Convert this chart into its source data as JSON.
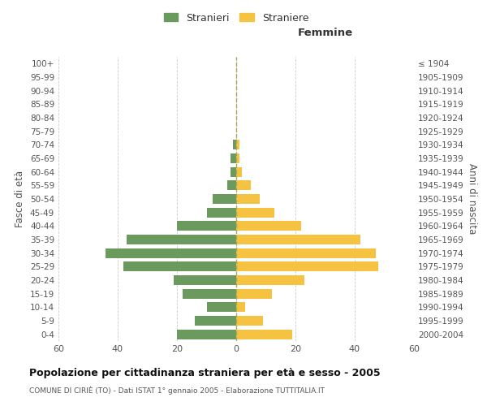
{
  "age_groups": [
    "0-4",
    "5-9",
    "10-14",
    "15-19",
    "20-24",
    "25-29",
    "30-34",
    "35-39",
    "40-44",
    "45-49",
    "50-54",
    "55-59",
    "60-64",
    "65-69",
    "70-74",
    "75-79",
    "80-84",
    "85-89",
    "90-94",
    "95-99",
    "100+"
  ],
  "birth_years": [
    "2000-2004",
    "1995-1999",
    "1990-1994",
    "1985-1989",
    "1980-1984",
    "1975-1979",
    "1970-1974",
    "1965-1969",
    "1960-1964",
    "1955-1959",
    "1950-1954",
    "1945-1949",
    "1940-1944",
    "1935-1939",
    "1930-1934",
    "1925-1929",
    "1920-1924",
    "1915-1919",
    "1910-1914",
    "1905-1909",
    "≤ 1904"
  ],
  "males": [
    20,
    14,
    10,
    18,
    21,
    38,
    44,
    37,
    20,
    10,
    8,
    3,
    2,
    2,
    1,
    0,
    0,
    0,
    0,
    0,
    0
  ],
  "females": [
    19,
    9,
    3,
    12,
    23,
    48,
    47,
    42,
    22,
    13,
    8,
    5,
    2,
    1,
    1,
    0,
    0,
    0,
    0,
    0,
    0
  ],
  "male_color": "#6b9a5e",
  "female_color": "#f5c242",
  "xlim": 60,
  "title": "Popolazione per cittadinanza straniera per età e sesso - 2005",
  "subtitle": "COMUNE DI CIRIÈ (TO) - Dati ISTAT 1° gennaio 2005 - Elaborazione TUTTITALIA.IT",
  "xlabel_right": "Femmine",
  "ylabel_left": "Fasce di età",
  "ylabel_right": "Anni di nascita",
  "legend_male": "Stranieri",
  "legend_female": "Straniere",
  "background_color": "#ffffff",
  "grid_color": "#cccccc"
}
